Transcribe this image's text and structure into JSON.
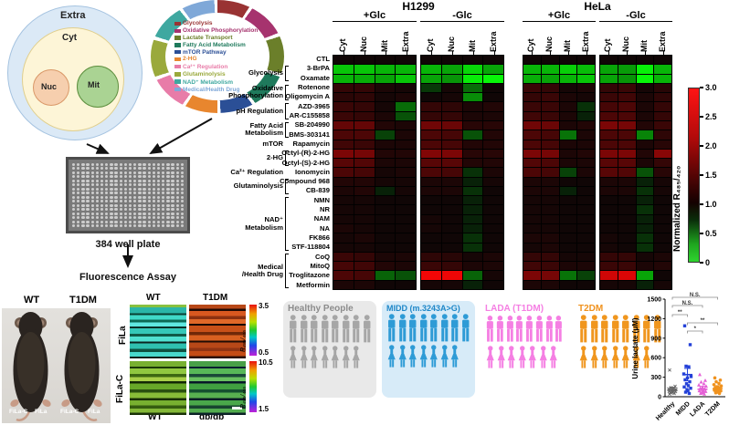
{
  "schematic": {
    "compartments": {
      "extra": "Extra",
      "cyt": "Cyt",
      "nuc": "Nuc",
      "mit": "Mit"
    },
    "compartment_colors": {
      "extra_fill": "#dbe9f6",
      "extra_edge": "#a5c3e0",
      "cyt_fill": "#fdf5d7",
      "cyt_edge": "#e0cf8e",
      "nuc_fill": "#f6cfae",
      "nuc_edge": "#d99767",
      "mit_fill": "#aad393",
      "mit_edge": "#5d8f3e"
    },
    "legend": [
      {
        "label": "Glycolysis",
        "color": "#993333"
      },
      {
        "label": "Oxidative Phosphorylation",
        "color": "#a6336e"
      },
      {
        "label": "Lactate Transport",
        "color": "#6b7f2a"
      },
      {
        "label": "Fatty Acid Metabolism",
        "color": "#1f7a5c"
      },
      {
        "label": "mTOR Pathway",
        "color": "#2b4f96"
      },
      {
        "label": "2-HG",
        "color": "#e8862e"
      },
      {
        "label": "Ca²⁺ Regulation",
        "color": "#e87ca8"
      },
      {
        "label": "Glutaminolysis",
        "color": "#9aa93c"
      },
      {
        "label": "NAD⁺ Metabolism",
        "color": "#3fa8a0"
      },
      {
        "label": "Medical/Health Drug",
        "color": "#7fa8d8"
      }
    ],
    "plate": {
      "rows": 16,
      "cols": 24,
      "label": "384 well plate"
    },
    "assay_label": "Fluorescence Assay"
  },
  "chart_data": [
    {
      "type": "heatmap",
      "cell_lines": [
        "H1299",
        "HeLa"
      ],
      "conditions": [
        "+Glc",
        "-Glc",
        "+Glc",
        "-Glc"
      ],
      "compartments": [
        "Cyt",
        "Nuc",
        "Mit",
        "Extra"
      ],
      "rows": [
        "CTL",
        "3-BrPA",
        "Oxamate",
        "Rotenone",
        "Oligomycin A",
        "AZD-3965",
        "AR-C155858",
        "SB-204990",
        "BMS-303141",
        "Rapamycin",
        "Octyl-(R)-2-HG",
        "Octyl-(S)-2-HG",
        "Ionomycin",
        "Compound 968",
        "CB-839",
        "NMN",
        "NR",
        "NAM",
        "NA",
        "FK866",
        "STF-118804",
        "CoQ",
        "MitoQ",
        "Troglitazone",
        "Metformin"
      ],
      "row_categories": [
        {
          "lines": "Glycolysis",
          "start": 1,
          "end": 2
        },
        {
          "lines": "Oxidative\nPhosphorylation",
          "start": 3,
          "end": 4
        },
        {
          "lines": "pH Regulation",
          "start": 5,
          "end": 6
        },
        {
          "lines": "Fatty Acid\nMetabolism",
          "start": 7,
          "end": 8
        },
        {
          "lines": "mTOR",
          "start": 9,
          "end": 9
        },
        {
          "lines": "2-HG",
          "start": 10,
          "end": 11
        },
        {
          "lines": "Ca²⁺ Regulation",
          "start": 12,
          "end": 12
        },
        {
          "lines": "Glutaminolysis",
          "start": 13,
          "end": 14
        },
        {
          "lines": "NAD⁺\nMetabolism",
          "start": 15,
          "end": 20
        },
        {
          "lines": "Medical\n/Health Drug",
          "start": 21,
          "end": 24
        }
      ],
      "values": [
        [
          1,
          1,
          1,
          1,
          1,
          1,
          1,
          1,
          1,
          1,
          1,
          1,
          1,
          1,
          1,
          1
        ],
        [
          0.45,
          0.45,
          0.5,
          0.5,
          0.5,
          0.55,
          0.4,
          0.55,
          0.5,
          0.5,
          0.42,
          0.48,
          0.55,
          0.58,
          0.32,
          0.5
        ],
        [
          0.5,
          0.52,
          0.55,
          0.45,
          0.55,
          0.6,
          0.33,
          0.3,
          0.52,
          0.55,
          0.5,
          0.45,
          0.55,
          0.6,
          0.3,
          0.5
        ],
        [
          1.3,
          1.3,
          1.1,
          1.05,
          0.88,
          1.05,
          0.72,
          1.0,
          1.35,
          1.3,
          1.05,
          1.1,
          1.3,
          1.35,
          1.05,
          1.2
        ],
        [
          1.22,
          1.25,
          1.05,
          1.1,
          1.0,
          1.05,
          0.62,
          1.0,
          1.3,
          1.35,
          1.1,
          1.05,
          1.35,
          1.4,
          1.1,
          1.25
        ],
        [
          1.35,
          1.3,
          1.05,
          0.72,
          1.3,
          1.25,
          1.1,
          1.15,
          1.35,
          1.35,
          1.1,
          0.9,
          1.45,
          1.5,
          1.1,
          1.3
        ],
        [
          1.35,
          1.3,
          1.1,
          0.8,
          1.3,
          1.3,
          1.1,
          1.1,
          1.4,
          1.35,
          1.1,
          0.95,
          1.5,
          1.5,
          1.1,
          1.3
        ],
        [
          1.7,
          1.7,
          1.15,
          1.1,
          1.8,
          1.75,
          1.2,
          1.2,
          1.8,
          1.75,
          1.1,
          1.15,
          1.9,
          1.85,
          1.15,
          1.35
        ],
        [
          1.5,
          1.5,
          0.85,
          1.1,
          1.5,
          1.45,
          0.8,
          1.15,
          1.5,
          1.45,
          0.7,
          1.1,
          1.5,
          1.5,
          0.65,
          1.25
        ],
        [
          1.4,
          1.35,
          1.1,
          1.1,
          1.5,
          1.45,
          1.15,
          1.15,
          1.5,
          1.45,
          1.1,
          1.1,
          1.5,
          1.5,
          1.1,
          1.2
        ],
        [
          1.9,
          1.85,
          1.15,
          1.15,
          1.95,
          1.9,
          1.2,
          1.2,
          1.9,
          1.85,
          1.1,
          1.15,
          1.9,
          1.9,
          1.15,
          2.0
        ],
        [
          1.6,
          1.55,
          1.1,
          1.1,
          1.6,
          1.6,
          1.15,
          1.15,
          1.55,
          1.5,
          1.1,
          1.1,
          1.6,
          1.6,
          1.1,
          1.3
        ],
        [
          1.5,
          1.45,
          1.05,
          1.1,
          1.5,
          1.45,
          0.9,
          1.1,
          1.5,
          1.45,
          0.85,
          1.1,
          1.6,
          1.55,
          0.8,
          1.2
        ],
        [
          1.15,
          1.15,
          1.05,
          1.05,
          1.1,
          1.1,
          0.95,
          1.05,
          1.1,
          1.1,
          1.0,
          1.0,
          1.1,
          1.1,
          0.95,
          1.05
        ],
        [
          1.1,
          1.15,
          0.95,
          1.05,
          1.1,
          1.1,
          0.9,
          1.0,
          1.1,
          1.1,
          0.95,
          1.0,
          1.1,
          1.1,
          0.9,
          1.05
        ],
        [
          1.05,
          1.05,
          1.0,
          1.0,
          1.0,
          1.0,
          0.95,
          1.0,
          1.05,
          1.05,
          1.0,
          1.0,
          1.0,
          1.0,
          0.95,
          1.0
        ],
        [
          1.05,
          1.05,
          1.0,
          1.0,
          1.0,
          1.0,
          0.95,
          1.0,
          1.05,
          1.05,
          1.0,
          1.0,
          1.0,
          1.0,
          0.9,
          1.0
        ],
        [
          1.05,
          1.05,
          1.0,
          1.0,
          1.05,
          1.0,
          0.95,
          1.0,
          1.05,
          1.05,
          1.0,
          1.0,
          1.0,
          1.0,
          0.95,
          1.0
        ],
        [
          1.1,
          1.05,
          1.0,
          1.0,
          1.05,
          1.0,
          0.95,
          1.0,
          1.05,
          1.05,
          1.0,
          1.0,
          1.0,
          1.0,
          0.95,
          1.0
        ],
        [
          1.05,
          1.1,
          1.0,
          1.0,
          1.0,
          1.0,
          0.9,
          1.0,
          1.1,
          1.1,
          1.0,
          1.0,
          1.05,
          1.0,
          0.9,
          1.0
        ],
        [
          1.05,
          1.05,
          1.0,
          1.0,
          1.0,
          1.0,
          0.9,
          1.0,
          1.05,
          1.1,
          1.0,
          1.0,
          1.05,
          1.0,
          0.9,
          1.0
        ],
        [
          1.35,
          1.3,
          1.1,
          1.1,
          1.25,
          1.2,
          1.05,
          1.1,
          1.3,
          1.3,
          1.05,
          1.05,
          1.3,
          1.3,
          1.05,
          1.1
        ],
        [
          1.45,
          1.4,
          1.15,
          1.1,
          1.35,
          1.3,
          1.1,
          1.1,
          1.4,
          1.35,
          1.1,
          1.1,
          1.35,
          1.35,
          1.1,
          1.15
        ],
        [
          1.5,
          1.45,
          0.75,
          0.8,
          2.9,
          2.85,
          0.75,
          1.05,
          1.9,
          1.85,
          0.7,
          0.85,
          2.6,
          2.7,
          0.55,
          1.0
        ],
        [
          1.1,
          1.1,
          1.0,
          1.0,
          1.05,
          1.05,
          0.95,
          1.0,
          1.1,
          1.1,
          1.0,
          1.0,
          1.05,
          1.05,
          0.95,
          1.05
        ]
      ],
      "colorbar": {
        "label": "Normalized R₄₈₅/₄₂₀",
        "ticks": [
          "3.0",
          "2.5",
          "2.0",
          "1.5",
          "1.0",
          "0.5",
          "0"
        ],
        "min": 0,
        "max": 3
      }
    },
    {
      "type": "scatter",
      "ylabel": "Urine lactate (μM)",
      "ylim": [
        0,
        1500
      ],
      "yticks": [
        0,
        300,
        600,
        900,
        1200,
        1500
      ],
      "categories": [
        "Healthy",
        "MIDD",
        "LADA",
        "T2DM"
      ],
      "colors": [
        "#666666",
        "#2441d8",
        "#e561d6",
        "#f0921e"
      ],
      "markers": [
        "x",
        "square",
        "triangle",
        "circle"
      ],
      "series": [
        {
          "name": "Healthy",
          "values": [
            410,
            160,
            140,
            130,
            120,
            115,
            110,
            105,
            100,
            95,
            90,
            85,
            80,
            75,
            70,
            60,
            50,
            40
          ]
        },
        {
          "name": "MIDD",
          "values": [
            1090,
            800,
            470,
            460,
            350,
            310,
            290,
            260,
            230,
            200,
            170,
            150,
            130,
            110,
            90,
            70,
            50
          ]
        },
        {
          "name": "LADA",
          "values": [
            340,
            250,
            225,
            200,
            180,
            160,
            145,
            130,
            120,
            110,
            100,
            90,
            80,
            70,
            60,
            50,
            40
          ]
        },
        {
          "name": "T2DM",
          "values": [
            290,
            255,
            230,
            205,
            185,
            165,
            150,
            140,
            130,
            120,
            110,
            100,
            90,
            80,
            70,
            60,
            50
          ]
        }
      ],
      "means": [
        100,
        340,
        115,
        125
      ],
      "sem": [
        45,
        95,
        45,
        45
      ],
      "significance": [
        {
          "from": 0,
          "to": 3,
          "label": "N.S."
        },
        {
          "from": 0,
          "to": 2,
          "label": "N.S."
        },
        {
          "from": 0,
          "to": 1,
          "label": "**"
        },
        {
          "from": 1,
          "to": 3,
          "label": "**"
        },
        {
          "from": 1,
          "to": 2,
          "label": "*"
        }
      ]
    }
  ],
  "mouse_panel": {
    "top_labels": [
      "WT",
      "T1DM"
    ],
    "bottom_labels": [
      "FiLa-C",
      "FiLa",
      "FiLa-C",
      "FiLa"
    ]
  },
  "fluor_panel": {
    "col_labels_top": [
      "WT",
      "T1DM"
    ],
    "row_labels": [
      "FiLa",
      "FiLa-C"
    ],
    "col_labels_bottom": [
      "WT",
      "db/db"
    ],
    "colorbars": [
      {
        "label": "R₄₈₅/₄₀₅",
        "max": "3.5",
        "min": "0.5"
      },
      {
        "label": "R₄₈₅/₄₀₅",
        "max": "10.5",
        "min": "1.5"
      }
    ],
    "images": [
      {
        "name": "FiLa-WT",
        "stripes": [
          "#88c040 3",
          "#2ab5a8 6",
          "#083f32 2",
          "#40d8c8 5",
          "#0c6a55 3",
          "#60e8e0 4",
          "#0a3028 2",
          "#35c8b8 6",
          "#105a48 3",
          "#50e0d0 5",
          "#0b2420 2",
          "#2fc0b0 6",
          "#0e5040 3",
          "#48d8cc 5",
          "#092018 2"
        ]
      },
      {
        "name": "FiLa-T1DM",
        "stripes": [
          "#b84818 4",
          "#200a04 2",
          "#d85820 5",
          "#8a3010 3",
          "#e06828 4",
          "#1a0802 2",
          "#c85018 6",
          "#702808 3",
          "#d86020 5",
          "#200c04 2",
          "#b84818 5",
          "#903413 3",
          "#c44c16 5",
          "#2a0e05 2"
        ]
      },
      {
        "name": "FiLaC-WT",
        "stripes": [
          "#78b030 5",
          "#1c3808 2",
          "#90c840 5",
          "#3c6812 3",
          "#a8d048 4",
          "#142805 2",
          "#68a828 6",
          "#2a5010 3",
          "#88bc38 5",
          "#182e06 2",
          "#78b030 5",
          "#355c10 3",
          "#84b838 4",
          "#1a3207 2"
        ]
      },
      {
        "name": "FiLaC-dbdb",
        "stripes": [
          "#48a048 5",
          "#0a2030 2",
          "#58b858 5",
          "#1a4838 3",
          "#68c060 4",
          "#081828 2",
          "#40a040 6",
          "#155030 3",
          "#58b050 5",
          "#0a1c25 2",
          "#4aa84a 5",
          "#184430 3",
          "#52ac4e 4",
          "#0c2228 2"
        ]
      }
    ]
  },
  "cohorts": {
    "groups": [
      {
        "title": "Healthy People",
        "title_color": "#8c8c8c",
        "icon_color": "#a6a6a6",
        "bg": "#e9e9e9",
        "males": 8,
        "females": 7
      },
      {
        "title": "MIDD (m.3243A>G)",
        "title_color": "#1e87c8",
        "icon_color": "#2e9bd6",
        "bg": "#d7ebf8",
        "males": 8,
        "females": 7
      },
      {
        "title": "LADA (T1DM)",
        "title_color": "#f57fe3",
        "icon_color": "#f57fe3",
        "bg": "",
        "males": 8,
        "females": 7
      },
      {
        "title": "T2DM",
        "title_color": "#f0921e",
        "icon_color": "#f0961e",
        "bg": "",
        "males": 8,
        "females": 7
      }
    ]
  }
}
